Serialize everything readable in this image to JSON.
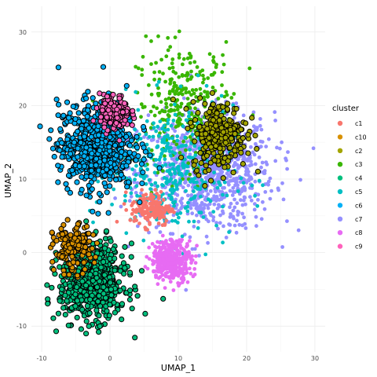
{
  "chart_data": {
    "type": "scatter",
    "xlabel": "UMAP_1",
    "ylabel": "UMAP_2",
    "xlim": [
      -11.5,
      31.5
    ],
    "ylim": [
      -13.5,
      33.5
    ],
    "x_ticks": [
      -10,
      0,
      10,
      20,
      30
    ],
    "y_ticks": [
      -10,
      0,
      10,
      20,
      30
    ],
    "x_tick_labels": [
      "-10",
      "0",
      "10",
      "20",
      "30"
    ],
    "y_tick_labels": [
      "-10",
      "0",
      "10",
      "20",
      "30"
    ],
    "grid": true,
    "legend": {
      "title": "cluster",
      "position": "right"
    },
    "series": [
      {
        "name": "c1",
        "color": "#F8766D",
        "highlighted": false,
        "clusters": [
          {
            "cx": 6,
            "cy": 6,
            "sx": 1.5,
            "sy": 1.2,
            "n": 160
          }
        ]
      },
      {
        "name": "c10",
        "color": "#D89000",
        "highlighted": true,
        "clusters": [
          {
            "cx": -5.5,
            "cy": 0.5,
            "sx": 1.4,
            "sy": 1.6,
            "n": 150
          }
        ]
      },
      {
        "name": "c2",
        "color": "#A3A500",
        "highlighted": true,
        "clusters": [
          {
            "cx": 16,
            "cy": 16,
            "sx": 2.0,
            "sy": 2.3,
            "n": 260
          }
        ]
      },
      {
        "name": "c3",
        "color": "#39B600",
        "highlighted": false,
        "clusters": [
          {
            "cx": 11,
            "cy": 20,
            "sx": 3.6,
            "sy": 4.2,
            "n": 300
          }
        ]
      },
      {
        "name": "c4",
        "color": "#00BF7D",
        "highlighted": true,
        "clusters": [
          {
            "cx": -2.5,
            "cy": -4,
            "sx": 2.4,
            "sy": 2.5,
            "n": 700
          }
        ]
      },
      {
        "name": "c5",
        "color": "#00BFC4",
        "highlighted": false,
        "clusters": [
          {
            "cx": 9,
            "cy": 11,
            "sx": 4.5,
            "sy": 4.5,
            "n": 380
          }
        ]
      },
      {
        "name": "c6",
        "color": "#00B0F6",
        "highlighted": true,
        "clusters": [
          {
            "cx": -2,
            "cy": 14.5,
            "sx": 2.8,
            "sy": 3.0,
            "n": 600
          }
        ]
      },
      {
        "name": "c7",
        "color": "#9590FF",
        "highlighted": false,
        "clusters": [
          {
            "cx": 14,
            "cy": 11,
            "sx": 5.0,
            "sy": 4.0,
            "n": 900
          }
        ]
      },
      {
        "name": "c8",
        "color": "#E76BF3",
        "highlighted": false,
        "clusters": [
          {
            "cx": 9,
            "cy": -1,
            "sx": 1.5,
            "sy": 1.4,
            "n": 380
          }
        ]
      },
      {
        "name": "c9",
        "color": "#FF62BC",
        "highlighted": true,
        "clusters": [
          {
            "cx": 0.7,
            "cy": 19,
            "sx": 1.1,
            "sy": 1.2,
            "n": 160
          }
        ]
      }
    ],
    "draw_order": [
      "c7",
      "c3",
      "c5",
      "c1",
      "c2",
      "c6",
      "c9",
      "c4",
      "c10",
      "c8"
    ]
  }
}
